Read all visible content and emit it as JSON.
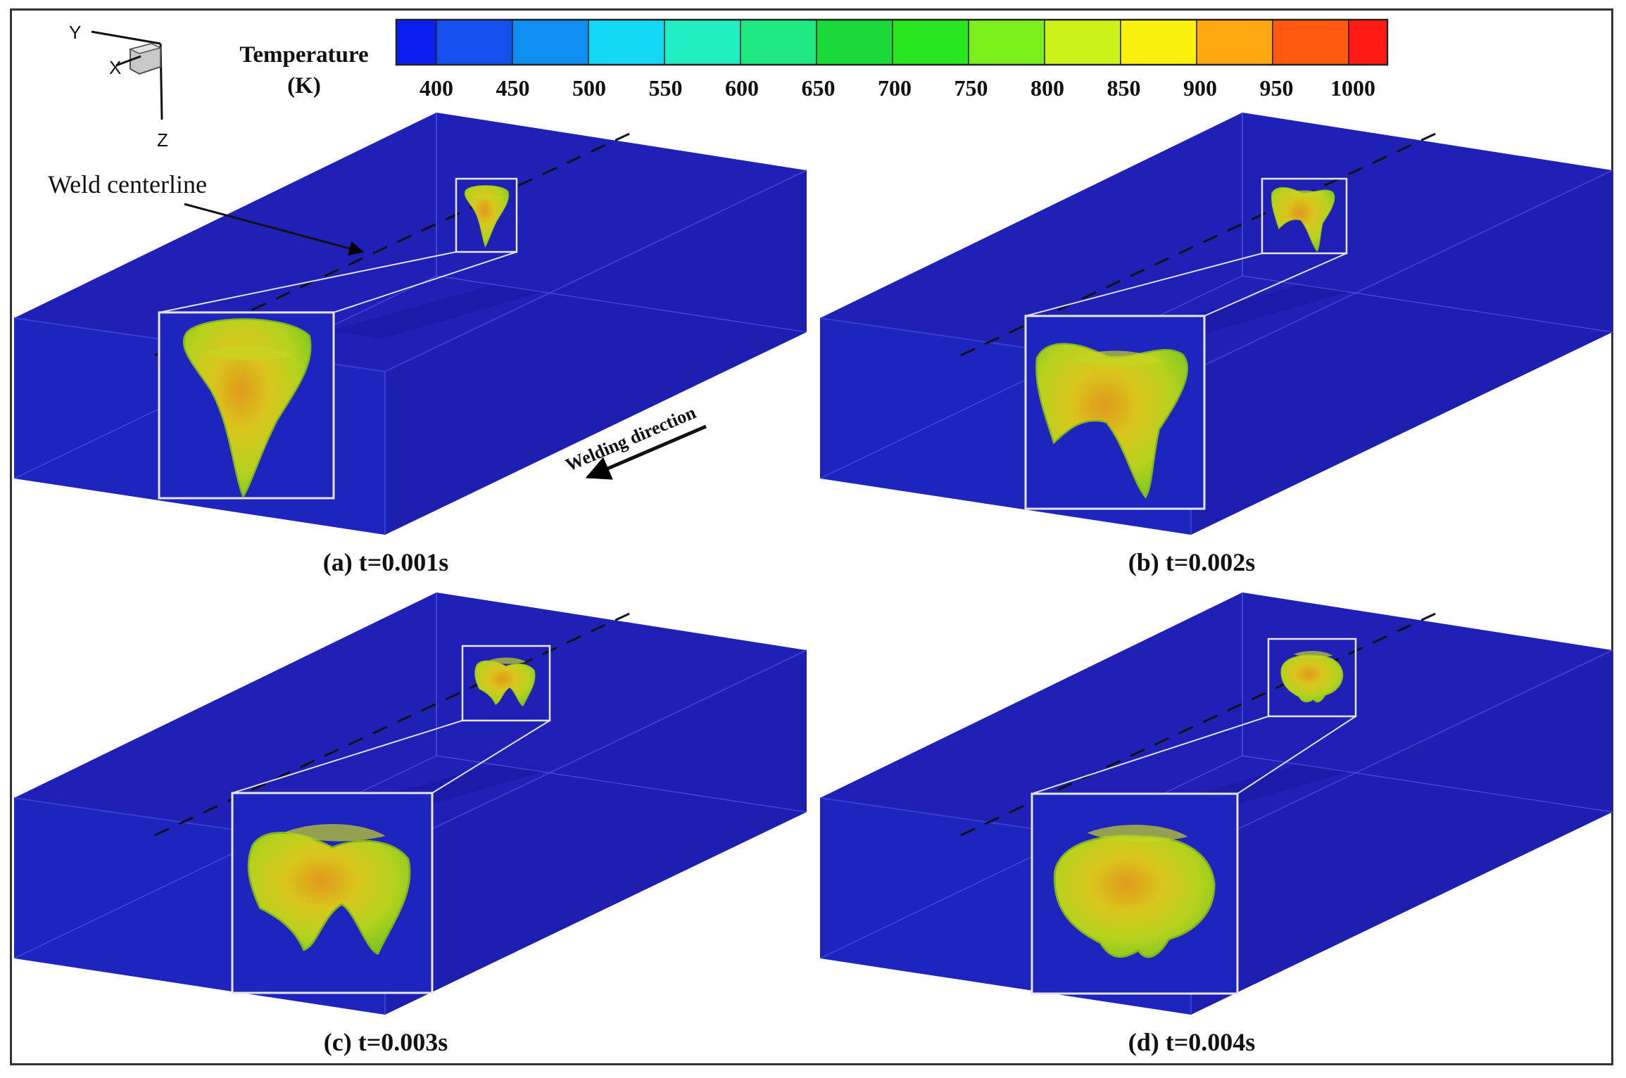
{
  "legend": {
    "title": "Temperature",
    "unit": "(K)",
    "ticks": [
      "400",
      "450",
      "500",
      "550",
      "600",
      "650",
      "700",
      "750",
      "800",
      "850",
      "900",
      "950",
      "1000"
    ],
    "colors": [
      "#0b1ef0",
      "#1450ee",
      "#0d8ef0",
      "#13d8f4",
      "#22eec4",
      "#1ee882",
      "#19d93a",
      "#28e71e",
      "#7cf01a",
      "#cdf218",
      "#fbf10f",
      "#ffa812",
      "#ff5a10",
      "#ff1a14"
    ]
  },
  "axes": {
    "y": "Y",
    "x": "X",
    "z": "Z"
  },
  "annotations": {
    "weld_centerline": "Weld centerline",
    "welding_direction": "Welding direction"
  },
  "panels": [
    {
      "label": "(a) t=0.001s"
    },
    {
      "label": "(b) t=0.002s"
    },
    {
      "label": "(c) t=0.003s"
    },
    {
      "label": "(d) t=0.004s"
    }
  ],
  "colors": {
    "plate_top": "#1f20b6",
    "plate_front": "#1e24be",
    "plate_side": "#1c1fb0",
    "pool_yellow": "#d8d21c",
    "pool_green": "#8fd221",
    "pool_orange": "#e08a1a"
  }
}
